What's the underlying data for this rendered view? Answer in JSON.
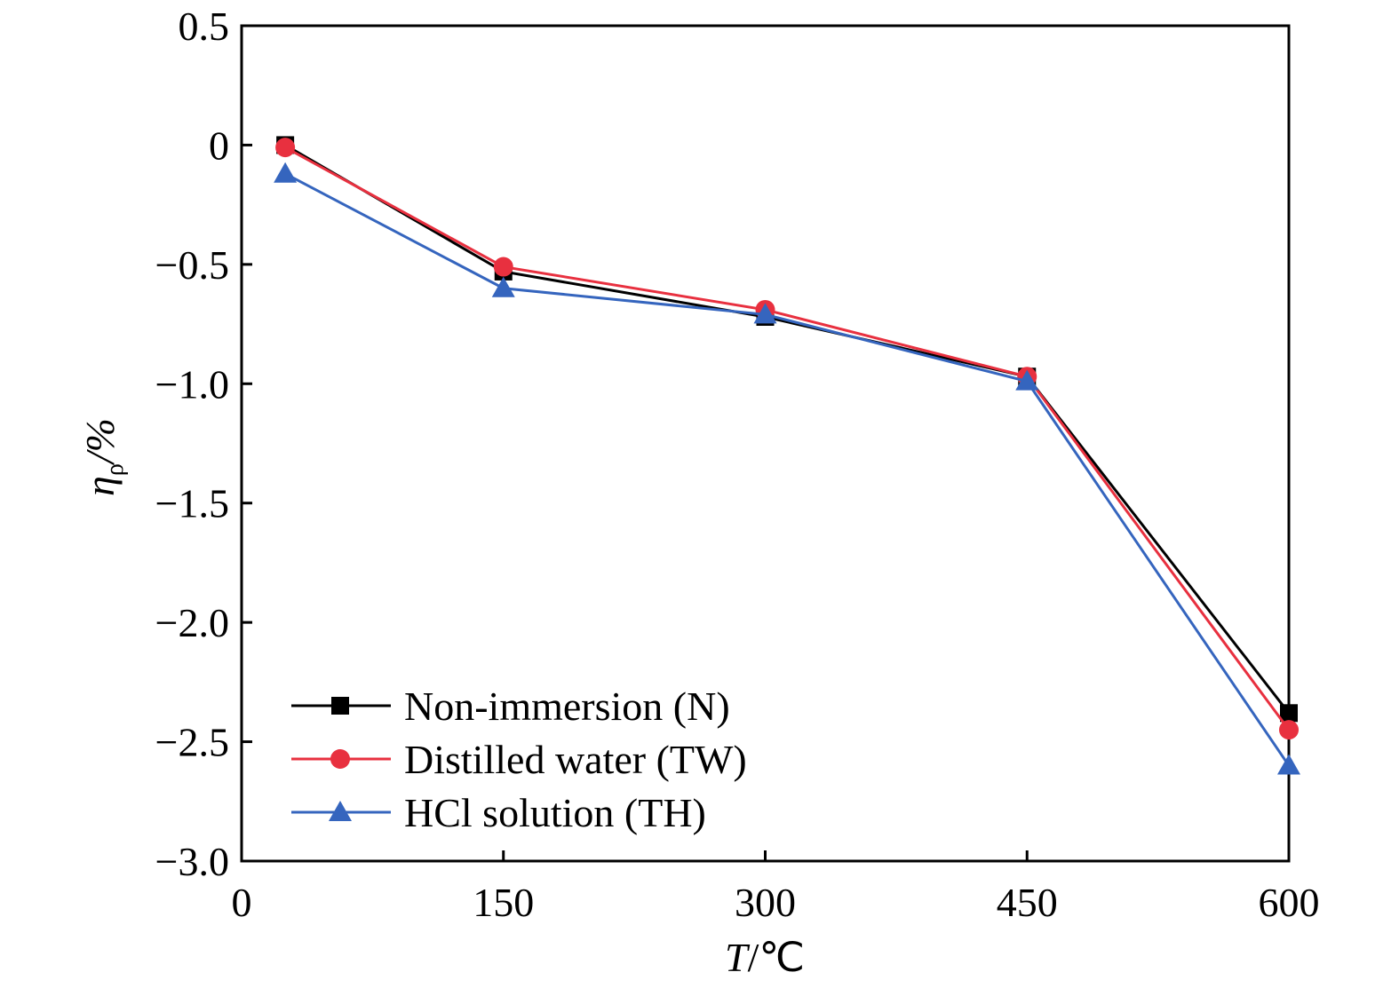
{
  "chart_data": {
    "type": "line",
    "xlabel": {
      "symbol": "T",
      "unit": "/℃"
    },
    "ylabel": {
      "symbol": "η",
      "subscript": "ρ",
      "unit": "/%"
    },
    "xlim": [
      0,
      600
    ],
    "ylim": [
      -3.0,
      0.5
    ],
    "xticks": [
      0,
      150,
      300,
      450,
      600
    ],
    "xtick_labels": [
      "0",
      "150",
      "300",
      "450",
      "600"
    ],
    "yticks": [
      0.5,
      0,
      -0.5,
      -1.0,
      -1.5,
      -2.0,
      -2.5,
      -3.0
    ],
    "ytick_labels": [
      "0.5",
      "0",
      "−0.5",
      "−1.0",
      "−1.5",
      "−2.0",
      "−2.5",
      "−3.0"
    ],
    "grid": false,
    "legend_position": "bottom-left",
    "x": [
      25,
      150,
      300,
      450,
      600
    ],
    "series": [
      {
        "name": "Non-immersion (N)",
        "color": "#000000",
        "marker": "square",
        "values": [
          0.0,
          -0.53,
          -0.72,
          -0.97,
          -2.38
        ]
      },
      {
        "name": "Distilled water (TW)",
        "color": "#e8303f",
        "marker": "circle",
        "values": [
          -0.01,
          -0.51,
          -0.69,
          -0.97,
          -2.45
        ]
      },
      {
        "name": "HCl solution (TH)",
        "color": "#3565be",
        "marker": "triangle",
        "values": [
          -0.12,
          -0.6,
          -0.71,
          -0.99,
          -2.6
        ]
      }
    ]
  }
}
